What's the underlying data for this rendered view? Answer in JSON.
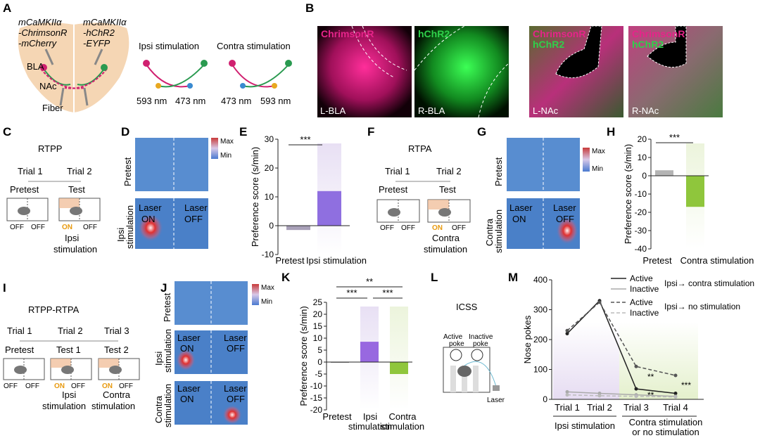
{
  "panels": {
    "A": "A",
    "B": "B",
    "C": "C",
    "D": "D",
    "E": "E",
    "F": "F",
    "G": "G",
    "H": "H",
    "I": "I",
    "J": "J",
    "K": "K",
    "L": "L",
    "M": "M"
  },
  "A": {
    "left_label": [
      "mCaMKIIα",
      "-ChrimsonR",
      "-mCherry"
    ],
    "right_label": [
      "mCaMKIIα",
      "-hChR2",
      "-EYFP"
    ],
    "bla": "BLA",
    "nac": "NAc",
    "fiber": "Fiber",
    "ipsi_title": "Ipsi stimulation",
    "contra_title": "Contra stimulation",
    "ipsi_wl": [
      "593 nm",
      "473 nm"
    ],
    "contra_wl": [
      "473 nm",
      "593 nm"
    ]
  },
  "B": {
    "images": [
      {
        "labels": [
          "ChrimsonR"
        ],
        "region": "L-BLA"
      },
      {
        "labels": [
          "hChR2"
        ],
        "region": "R-BLA"
      },
      {
        "labels": [
          "ChrimsonR",
          "hChR2"
        ],
        "region": "L-NAc"
      },
      {
        "labels": [
          "ChrimsonR",
          "hChR2"
        ],
        "region": "R-NAc"
      }
    ],
    "colors": {
      "chrimson": "#e6248a",
      "chr2": "#2fd04a"
    }
  },
  "C": {
    "title": "RTPP",
    "trial1": "Trial 1",
    "trial2": "Trial 2",
    "pretest": "Pretest",
    "test": "Test",
    "off": "OFF",
    "on": "ON",
    "stim": [
      "Ipsi",
      "stimulation"
    ]
  },
  "D": {
    "pretest": "Pretest",
    "stim": [
      "Ipsi",
      "stimulation"
    ],
    "laser_on": [
      "Laser",
      "ON"
    ],
    "laser_off": [
      "Laser",
      "OFF"
    ],
    "max": "Max",
    "min": "Min"
  },
  "F": {
    "title": "RTPA",
    "trial1": "Trial 1",
    "trial2": "Trial 2",
    "pretest": "Pretest",
    "test": "Test",
    "off": "OFF",
    "on": "ON",
    "stim": [
      "Contra",
      "stimulation"
    ]
  },
  "G": {
    "pretest": "Pretest",
    "stim": [
      "Contra",
      "stimulation"
    ],
    "laser_on": [
      "Laser",
      "ON"
    ],
    "laser_off": [
      "Laser",
      "OFF"
    ],
    "max": "Max",
    "min": "Min"
  },
  "I": {
    "title": "RTPP-RTPA",
    "trials": [
      "Trial 1",
      "Trial 2",
      "Trial 3"
    ],
    "tests": [
      "Pretest",
      "Test 1",
      "Test 2"
    ],
    "off": "OFF",
    "on": "ON",
    "stim1": [
      "Ipsi",
      "stimulation"
    ],
    "stim2": [
      "Contra",
      "stimulation"
    ]
  },
  "J": {
    "pretest": "Pretest",
    "ipsi": [
      "Ipsi",
      "stimulation"
    ],
    "contra": [
      "Contra",
      "stimulation"
    ],
    "laser_on": [
      "Laser",
      "ON"
    ],
    "laser_off": [
      "Laser",
      "OFF"
    ],
    "max": "Max",
    "min": "Min"
  },
  "L": {
    "title": "ICSS",
    "active": [
      "Active",
      "poke"
    ],
    "inactive": [
      "Inactive",
      "poke"
    ],
    "laser": "Laser"
  },
  "chart_data": [
    {
      "id": "E",
      "type": "bar",
      "categories": [
        "Pretest",
        "Ipsi stimulation"
      ],
      "values": [
        -1.5,
        12
      ],
      "ylabel": "Preference score (s/min)",
      "ylim": [
        -10,
        30
      ],
      "yticks": [
        -10,
        0,
        10,
        20,
        30
      ],
      "significance": "***"
    },
    {
      "id": "H",
      "type": "bar",
      "categories": [
        "Pretest",
        "Contra stimulation"
      ],
      "values": [
        3,
        -17
      ],
      "ylabel": "Preference score (s/min)",
      "ylim": [
        -40,
        20
      ],
      "yticks": [
        -40,
        -30,
        -20,
        -10,
        0,
        10,
        20
      ],
      "significance": "***"
    },
    {
      "id": "K",
      "type": "bar",
      "categories": [
        "Pretest",
        "Ipsi stimulation",
        "Contra stimulation"
      ],
      "values": [
        -0.3,
        8.5,
        -5
      ],
      "ylabel": "Preference score (s/min)",
      "ylim": [
        -20,
        25
      ],
      "yticks": [
        -20,
        -15,
        -10,
        -5,
        0,
        5,
        10,
        15,
        20,
        25
      ],
      "significance": [
        "***",
        "***",
        "**"
      ]
    },
    {
      "id": "M",
      "type": "line",
      "categories": [
        "Trial 1",
        "Trial 2",
        "Trial 3",
        "Trial 4"
      ],
      "series": [
        {
          "name": "Active (Ipsi → contra stimulation)",
          "style": "solid-dark",
          "values": [
            220,
            330,
            35,
            20
          ]
        },
        {
          "name": "Inactive (Ipsi → contra stimulation)",
          "style": "solid-light",
          "values": [
            25,
            20,
            15,
            10
          ]
        },
        {
          "name": "Active (Ipsi → no stimulation)",
          "style": "dashed-dark",
          "values": [
            230,
            325,
            110,
            80
          ]
        },
        {
          "name": "Inactive (Ipsi → no stimulation)",
          "style": "dashed-light",
          "values": [
            15,
            12,
            10,
            8
          ]
        }
      ],
      "ylabel": "Nose pokes",
      "ylim": [
        0,
        400
      ],
      "yticks": [
        0,
        100,
        200,
        300,
        400
      ],
      "legend": {
        "active": "Active",
        "inactive": "Inactive",
        "group1": "Ipsi→ contra stimulation",
        "group2": "Ipsi→ no stimulation"
      },
      "xgroups": [
        "Ipsi stimulation",
        "Contra stimulation",
        "or no stimulation"
      ],
      "significance": [
        "**",
        "**",
        "***"
      ]
    }
  ]
}
